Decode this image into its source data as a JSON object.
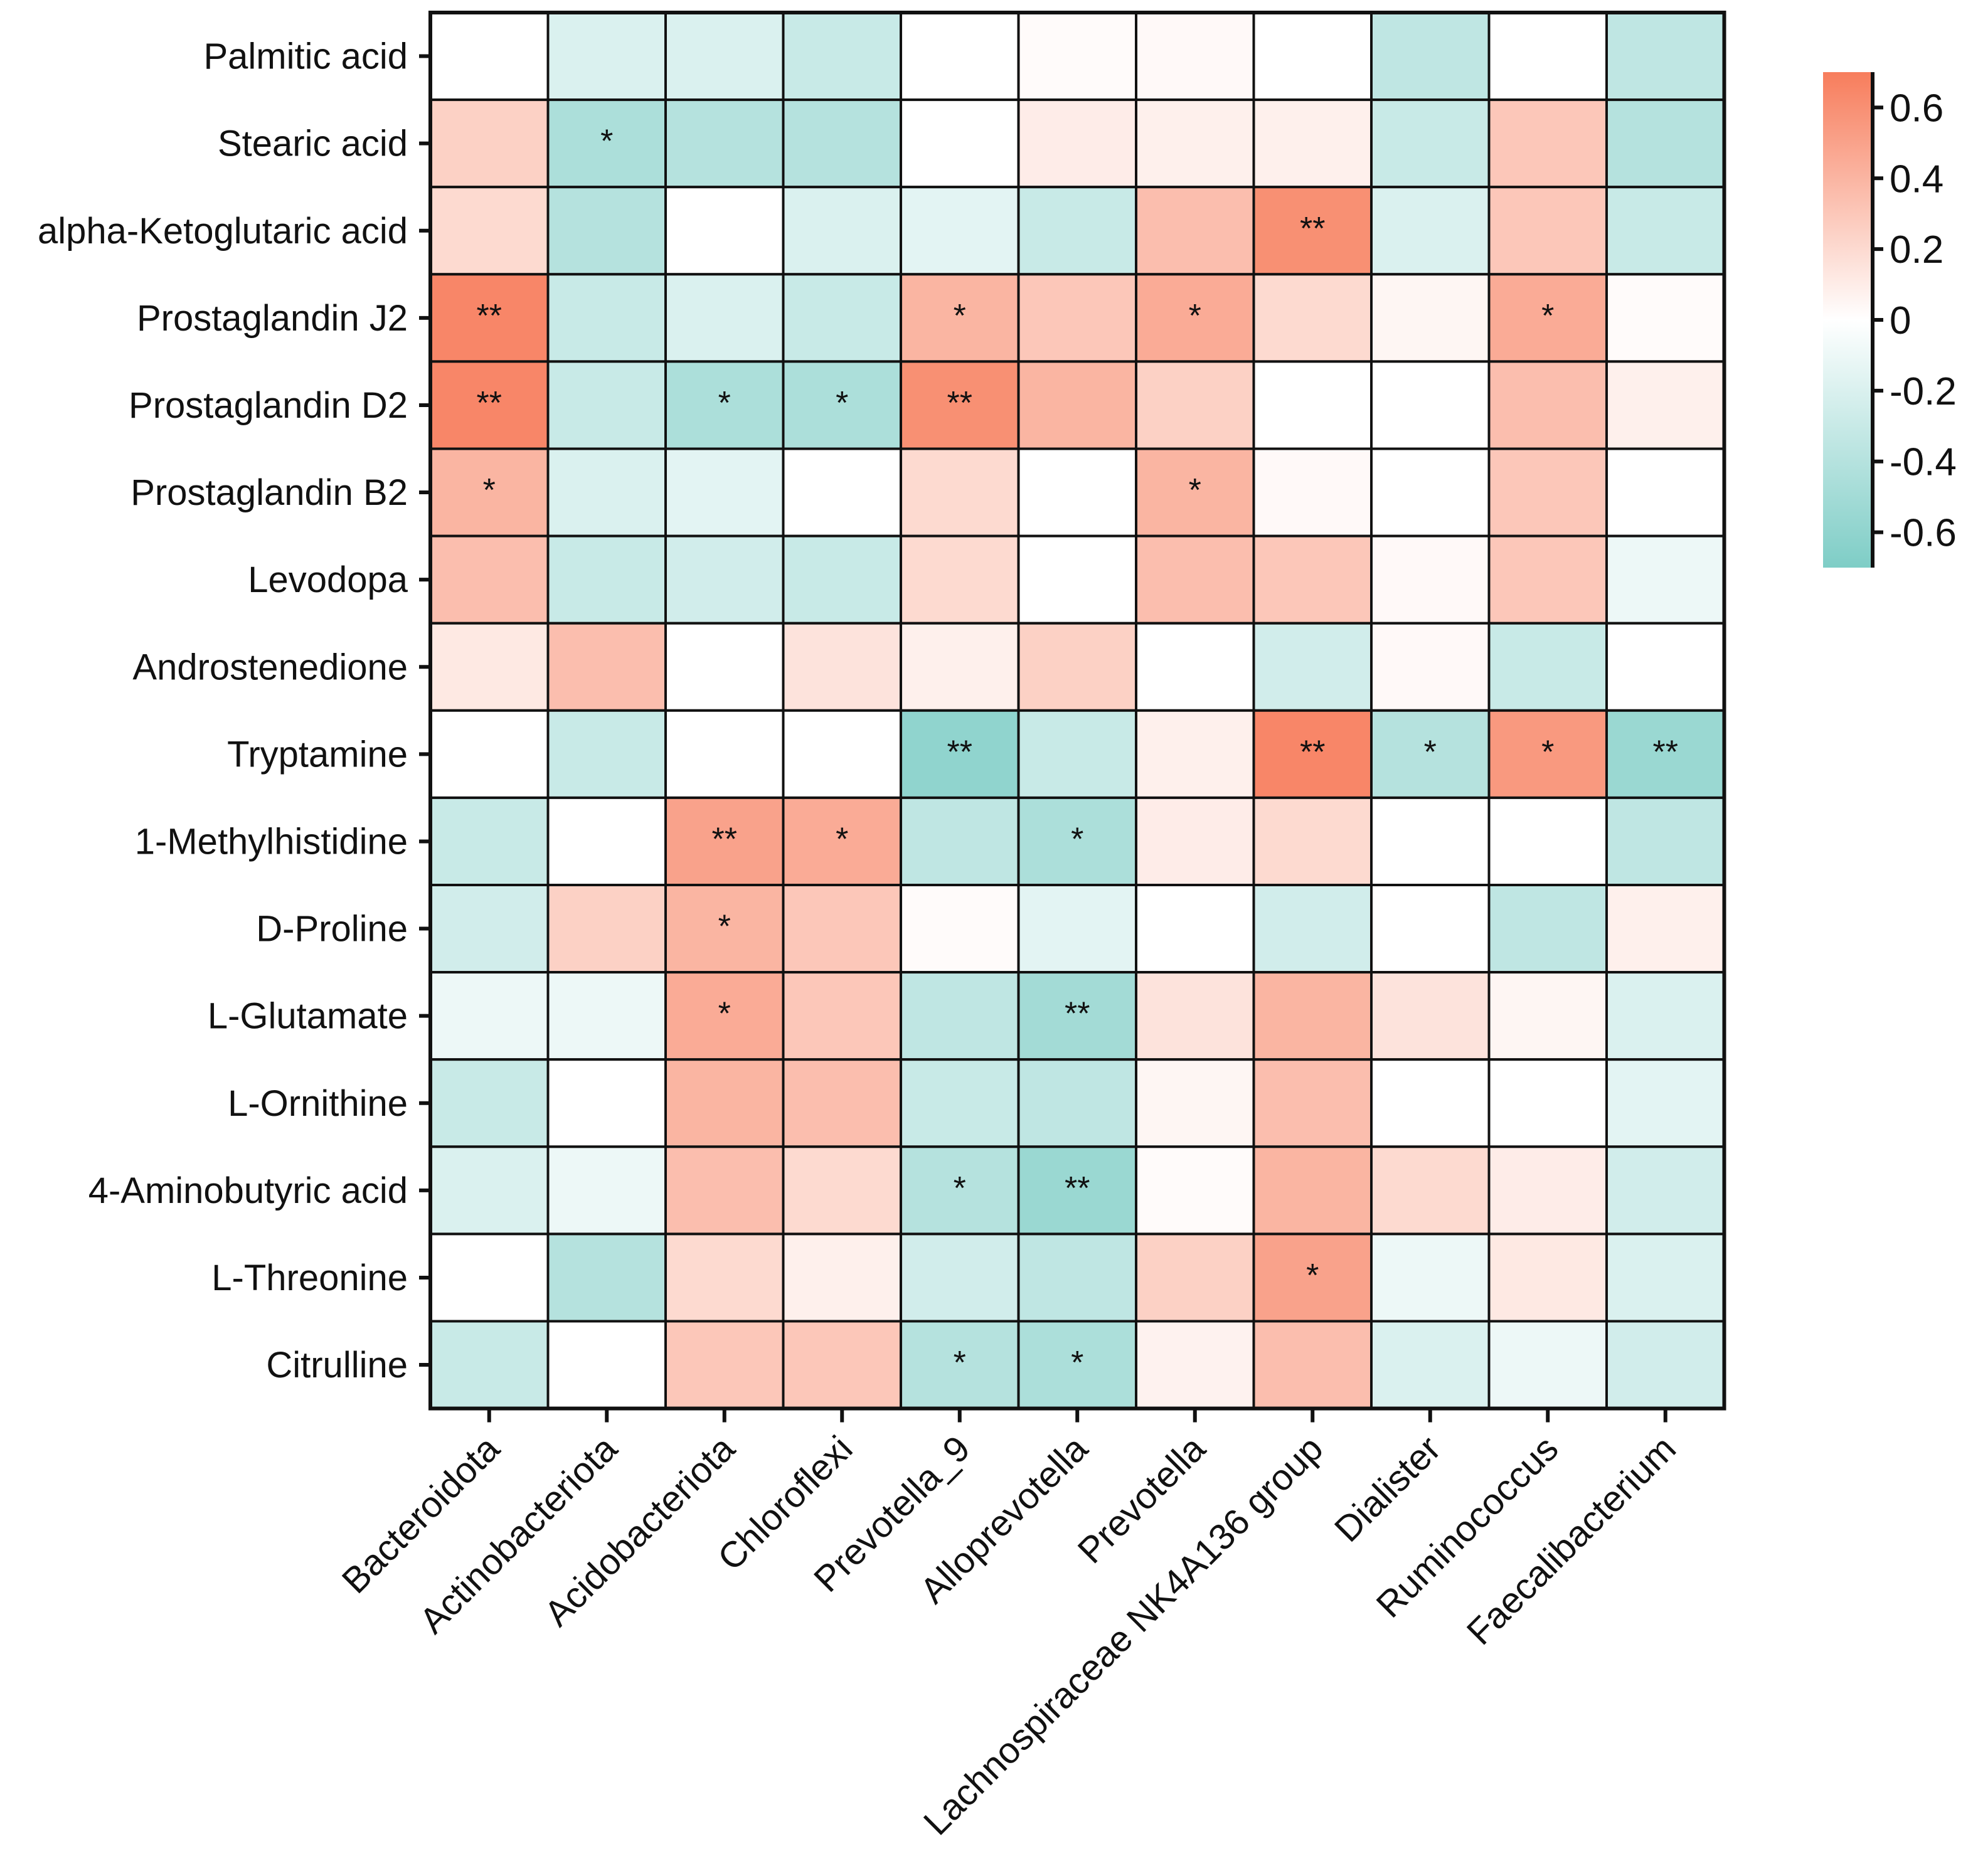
{
  "chart_data": {
    "type": "heatmap",
    "title": "",
    "rows": [
      "Palmitic acid",
      "Stearic acid",
      "alpha-Ketoglutaric acid",
      "Prostaglandin J2",
      "Prostaglandin D2",
      "Prostaglandin B2",
      "Levodopa",
      "Androstenedione",
      "Tryptamine",
      "1-Methylhistidine",
      "D-Proline",
      "L-Glutamate",
      "L-Ornithine",
      "4-Aminobutyric acid",
      "L-Threonine",
      "Citrulline"
    ],
    "columns": [
      "Bacteroidota",
      "Actinobacteriota",
      "Acidobacteriota",
      "Chloroflexi",
      "Prevotella_9",
      "Alloprevotella",
      "Prevotella",
      "Lachnospiraceae NK4A136 group",
      "Dialister",
      "Ruminococcus",
      "Faecalibacterium"
    ],
    "values": [
      [
        0.0,
        -0.2,
        -0.2,
        -0.3,
        0.0,
        0.02,
        0.03,
        0.0,
        -0.35,
        0.0,
        -0.35
      ],
      [
        0.25,
        -0.45,
        -0.4,
        -0.4,
        0.0,
        0.1,
        0.08,
        0.08,
        -0.3,
        0.3,
        -0.4
      ],
      [
        0.2,
        -0.4,
        0.0,
        -0.2,
        -0.15,
        -0.3,
        0.35,
        0.6,
        -0.2,
        0.3,
        -0.3
      ],
      [
        0.65,
        -0.3,
        -0.2,
        -0.3,
        0.4,
        0.3,
        0.45,
        0.2,
        0.05,
        0.45,
        0.02
      ],
      [
        0.65,
        -0.3,
        -0.45,
        -0.45,
        0.6,
        0.4,
        0.25,
        0.0,
        0.0,
        0.35,
        0.08
      ],
      [
        0.4,
        -0.2,
        -0.15,
        0.0,
        0.2,
        0.0,
        0.4,
        0.03,
        0.0,
        0.3,
        0.0
      ],
      [
        0.35,
        -0.3,
        -0.25,
        -0.3,
        0.2,
        0.0,
        0.35,
        0.3,
        0.03,
        0.3,
        -0.1
      ],
      [
        0.12,
        0.35,
        0.0,
        0.15,
        0.08,
        0.25,
        0.0,
        -0.25,
        0.03,
        -0.3,
        0.0
      ],
      [
        0.0,
        -0.3,
        0.0,
        0.0,
        -0.6,
        -0.3,
        0.08,
        0.65,
        -0.4,
        0.55,
        -0.55
      ],
      [
        -0.3,
        0.0,
        0.5,
        0.45,
        -0.35,
        -0.45,
        0.1,
        0.2,
        0.0,
        0.0,
        -0.35
      ],
      [
        -0.25,
        0.25,
        0.4,
        0.3,
        0.02,
        -0.15,
        0.0,
        -0.25,
        0.0,
        -0.35,
        0.08
      ],
      [
        -0.1,
        -0.1,
        0.45,
        0.3,
        -0.35,
        -0.5,
        0.15,
        0.4,
        0.15,
        0.05,
        -0.2
      ],
      [
        -0.3,
        0.0,
        0.4,
        0.35,
        -0.3,
        -0.35,
        0.05,
        0.35,
        0.0,
        0.0,
        -0.15
      ],
      [
        -0.2,
        -0.1,
        0.35,
        0.2,
        -0.4,
        -0.55,
        0.02,
        0.4,
        0.2,
        0.1,
        -0.25
      ],
      [
        0.0,
        -0.4,
        0.2,
        0.08,
        -0.25,
        -0.35,
        0.25,
        0.5,
        -0.1,
        0.12,
        -0.2
      ],
      [
        -0.3,
        0.0,
        0.3,
        0.3,
        -0.4,
        -0.45,
        0.07,
        0.35,
        -0.2,
        -0.1,
        -0.25
      ]
    ],
    "significance": [
      [
        "",
        "",
        "",
        "",
        "",
        "",
        "",
        "",
        "",
        "",
        ""
      ],
      [
        "",
        "*",
        "",
        "",
        "",
        "",
        "",
        "",
        "",
        "",
        ""
      ],
      [
        "",
        "",
        "",
        "",
        "",
        "",
        "",
        "**",
        "",
        "",
        ""
      ],
      [
        "**",
        "",
        "",
        "",
        "*",
        "",
        "*",
        "",
        "",
        "*",
        ""
      ],
      [
        "**",
        "",
        "*",
        "*",
        "**",
        "",
        "",
        "",
        "",
        "",
        ""
      ],
      [
        "*",
        "",
        "",
        "",
        "",
        "",
        "*",
        "",
        "",
        "",
        ""
      ],
      [
        "",
        "",
        "",
        "",
        "",
        "",
        "",
        "",
        "",
        "",
        ""
      ],
      [
        "",
        "",
        "",
        "",
        "",
        "",
        "",
        "",
        "",
        "",
        ""
      ],
      [
        "",
        "",
        "",
        "",
        "**",
        "",
        "",
        "**",
        "*",
        "*",
        "**"
      ],
      [
        "",
        "",
        "**",
        "*",
        "",
        "*",
        "",
        "",
        "",
        "",
        ""
      ],
      [
        "",
        "",
        "*",
        "",
        "",
        "",
        "",
        "",
        "",
        "",
        ""
      ],
      [
        "",
        "",
        "*",
        "",
        "",
        "**",
        "",
        "",
        "",
        "",
        ""
      ],
      [
        "",
        "",
        "",
        "",
        "",
        "",
        "",
        "",
        "",
        "",
        ""
      ],
      [
        "",
        "",
        "",
        "",
        "*",
        "**",
        "",
        "",
        "",
        "",
        ""
      ],
      [
        "",
        "",
        "",
        "",
        "",
        "",
        "",
        "*",
        "",
        "",
        ""
      ],
      [
        "",
        "",
        "",
        "",
        "*",
        "*",
        "",
        "",
        "",
        "",
        ""
      ]
    ],
    "colorbar": {
      "range": [
        -0.7,
        0.7
      ],
      "ticks": [
        0.6,
        0.4,
        0.2,
        0,
        -0.2,
        -0.4,
        -0.6
      ],
      "tick_labels": [
        "0.6",
        "0.4",
        "0.2",
        "0",
        "-0.2",
        "-0.4",
        "-0.6"
      ],
      "low_color": "#7ecdc6",
      "mid_color": "#ffffff",
      "high_color": "#f77d5c"
    },
    "xlabel": "",
    "ylabel": "",
    "legend": "right"
  }
}
